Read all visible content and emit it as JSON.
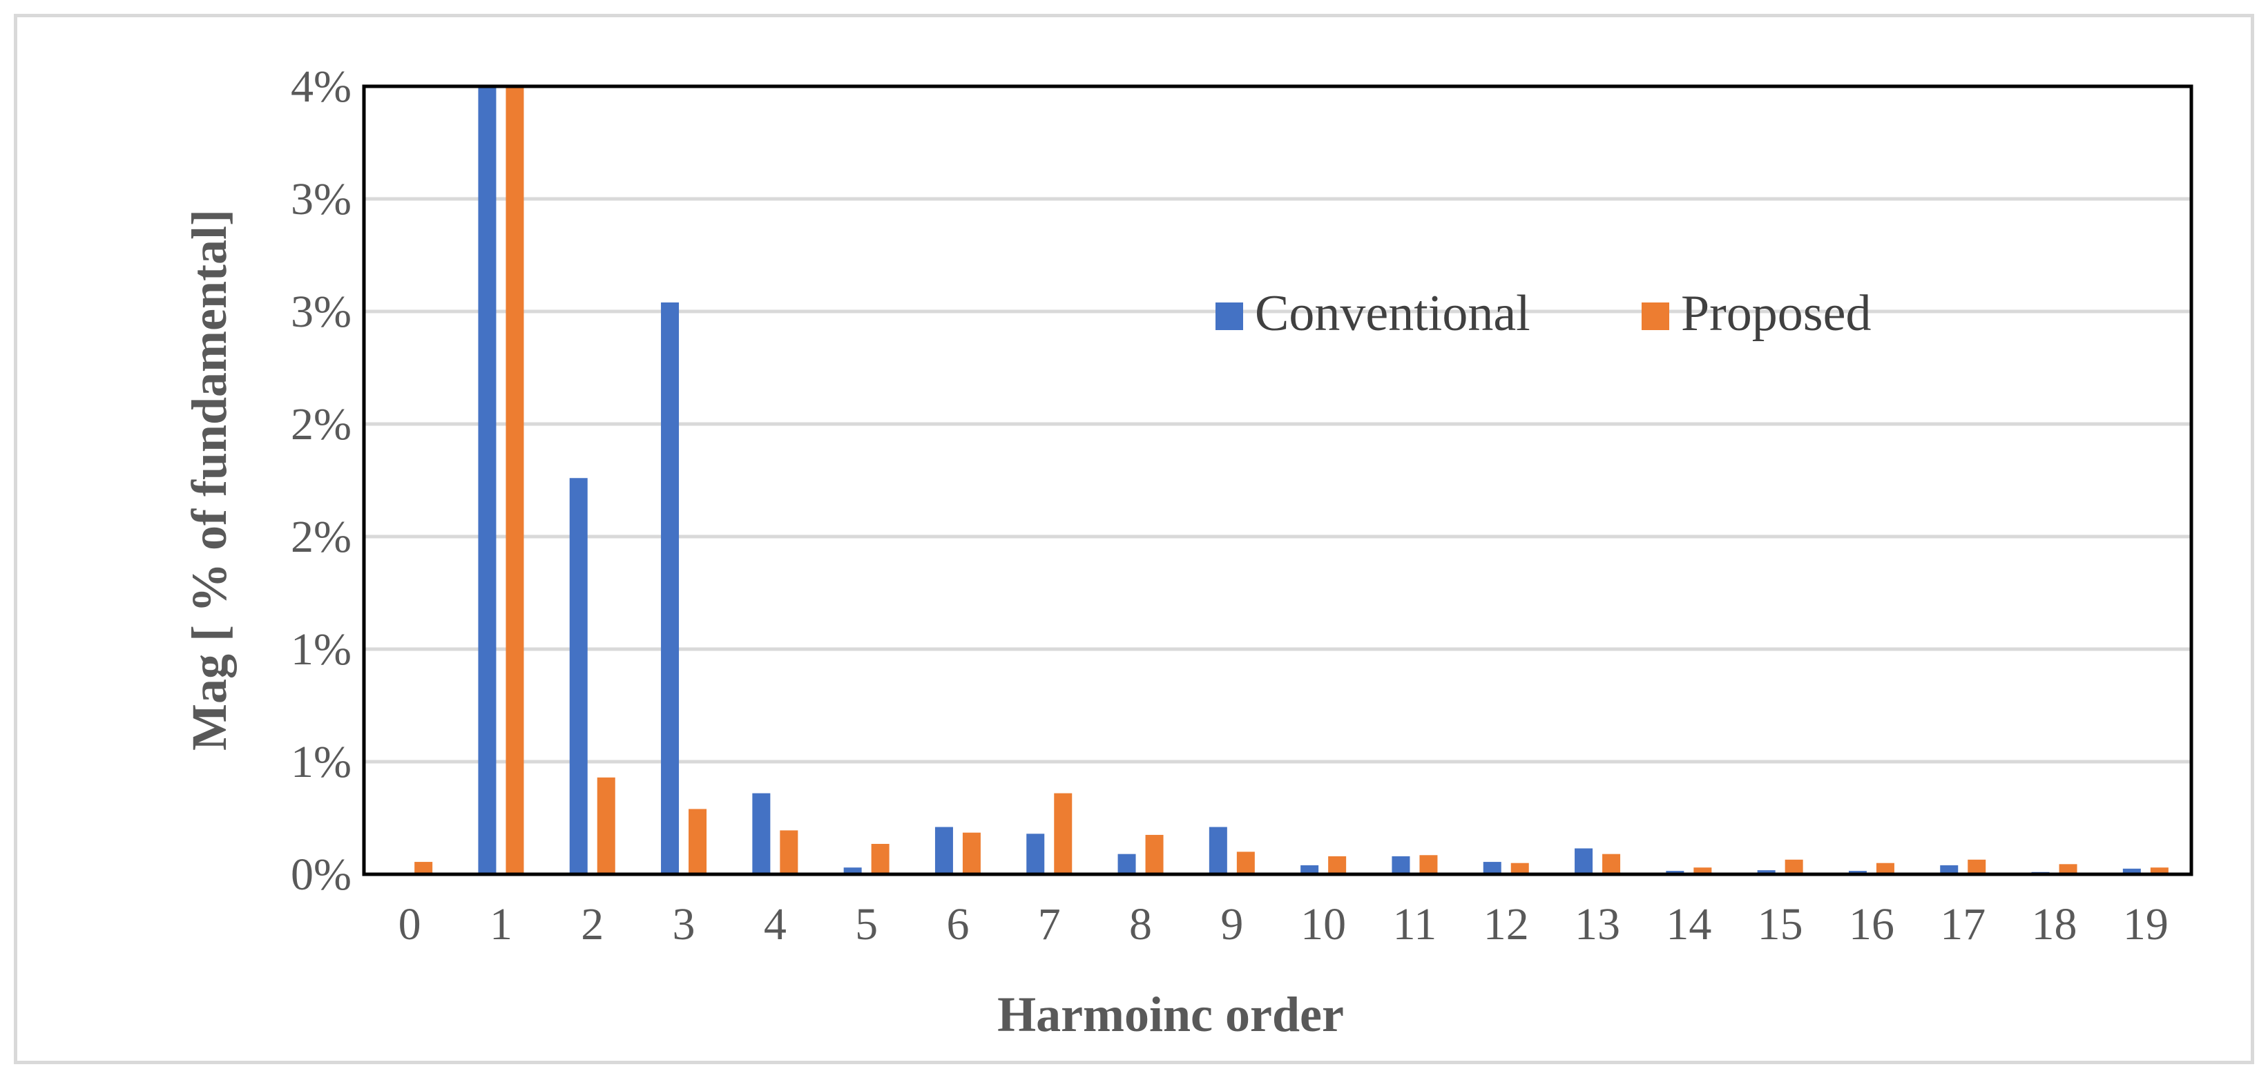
{
  "chart_data": {
    "type": "bar",
    "categories": [
      "0",
      "1",
      "2",
      "3",
      "4",
      "5",
      "6",
      "7",
      "8",
      "9",
      "10",
      "11",
      "12",
      "13",
      "14",
      "15",
      "16",
      "17",
      "18",
      "19"
    ],
    "series": [
      {
        "name": "Conventional",
        "color": "#4472C4",
        "values": [
          0,
          3.5,
          1.76,
          2.54,
          0.36,
          0.03,
          0.21,
          0.18,
          0.09,
          0.21,
          0.04,
          0.08,
          0.055,
          0.115,
          0.015,
          0.018,
          0.015,
          0.04,
          0.01,
          0.025
        ]
      },
      {
        "name": "Proposed",
        "color": "#ED7D31",
        "values": [
          0.055,
          3.5,
          0.43,
          0.29,
          0.195,
          0.135,
          0.185,
          0.36,
          0.175,
          0.1,
          0.08,
          0.085,
          0.05,
          0.09,
          0.03,
          0.065,
          0.05,
          0.065,
          0.045,
          0.03
        ]
      }
    ],
    "ylim": [
      0,
      3.5
    ],
    "y_ticks": [
      0,
      0.5,
      1,
      1.5,
      2,
      2.5,
      3,
      3.5
    ],
    "y_tick_labels": [
      "0%",
      "1%",
      "1%",
      "2%",
      "2%",
      "3%",
      "3%",
      "4%"
    ],
    "xlabel": "Harmoinc order",
    "ylabel": "Mag [ % of fundamental]",
    "grid": true,
    "legend_position": "top-right",
    "colors": {
      "gridline": "#d9d9d9",
      "axis": "#000000",
      "text": "#595959"
    }
  }
}
